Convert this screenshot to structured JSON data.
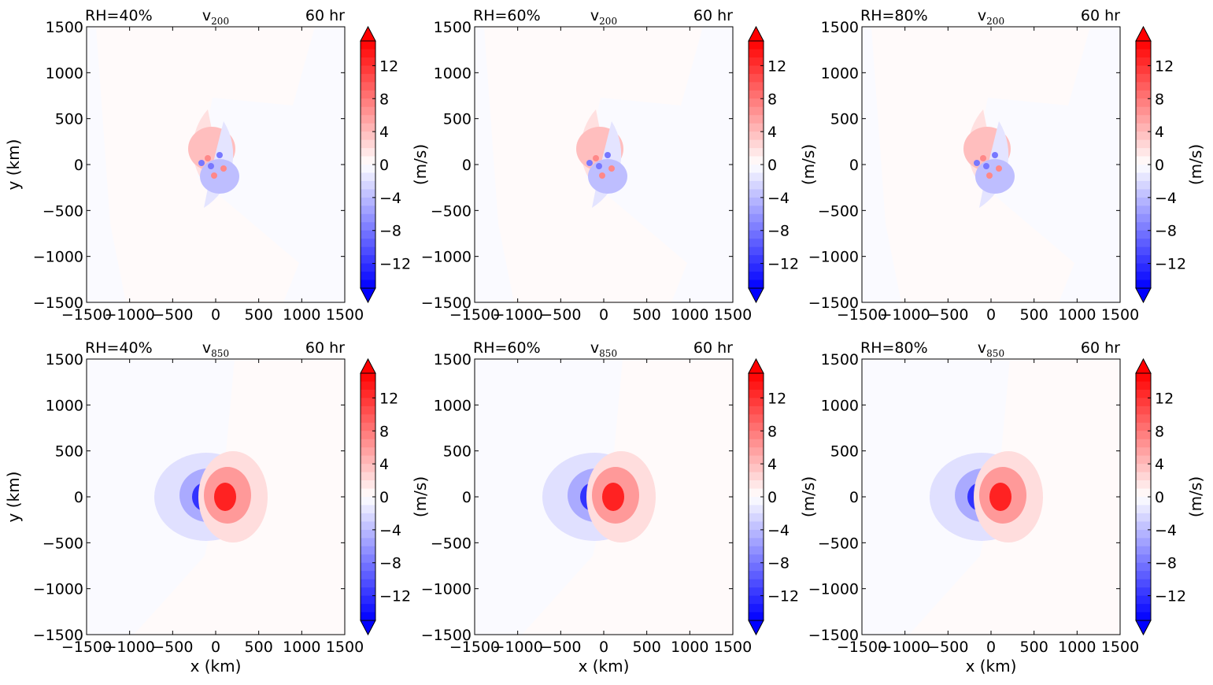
{
  "chart_data": {
    "type": "heatmap",
    "time_label": "60 hr",
    "cmap": {
      "name": "bwr",
      "min_color": "#0000ff",
      "zero_color": "#ffffff",
      "max_color": "#ff0000"
    },
    "colorbar": {
      "unit": "(m/s)",
      "range": [
        -15,
        15
      ],
      "ticks": [
        -12,
        -8,
        -4,
        0,
        4,
        8,
        12
      ],
      "tick_labels": [
        "−12",
        "−8",
        "−4",
        "0",
        "4",
        "8",
        "12"
      ],
      "extend": "both"
    },
    "axes": {
      "xlabel": "x (km)",
      "ylabel": "y (km)",
      "xlim": [
        -1500,
        1500
      ],
      "ylim": [
        -1500,
        1500
      ],
      "xticks": [
        -1500,
        -1000,
        -500,
        0,
        500,
        1000,
        1500
      ],
      "x_tick_labels": [
        "−1500",
        "−1000",
        "−500",
        "0",
        "500",
        "1000",
        "1500"
      ],
      "yticks": [
        1500,
        1000,
        500,
        0,
        -500,
        -1000,
        -1500
      ],
      "y_tick_labels": [
        "1500",
        "1000",
        "500",
        "0",
        "−500",
        "−1000",
        "−1500"
      ]
    },
    "panels": [
      {
        "rh_label": "RH=40%",
        "var": "v",
        "level": "200",
        "pattern": "v200"
      },
      {
        "rh_label": "RH=60%",
        "var": "v",
        "level": "200",
        "pattern": "v200"
      },
      {
        "rh_label": "RH=80%",
        "var": "v",
        "level": "200",
        "pattern": "v200"
      },
      {
        "rh_label": "RH=40%",
        "var": "v",
        "level": "850",
        "pattern": "v850"
      },
      {
        "rh_label": "RH=60%",
        "var": "v",
        "level": "850",
        "pattern": "v850"
      },
      {
        "rh_label": "RH=80%",
        "var": "v",
        "level": "850",
        "pattern": "v850"
      }
    ]
  }
}
